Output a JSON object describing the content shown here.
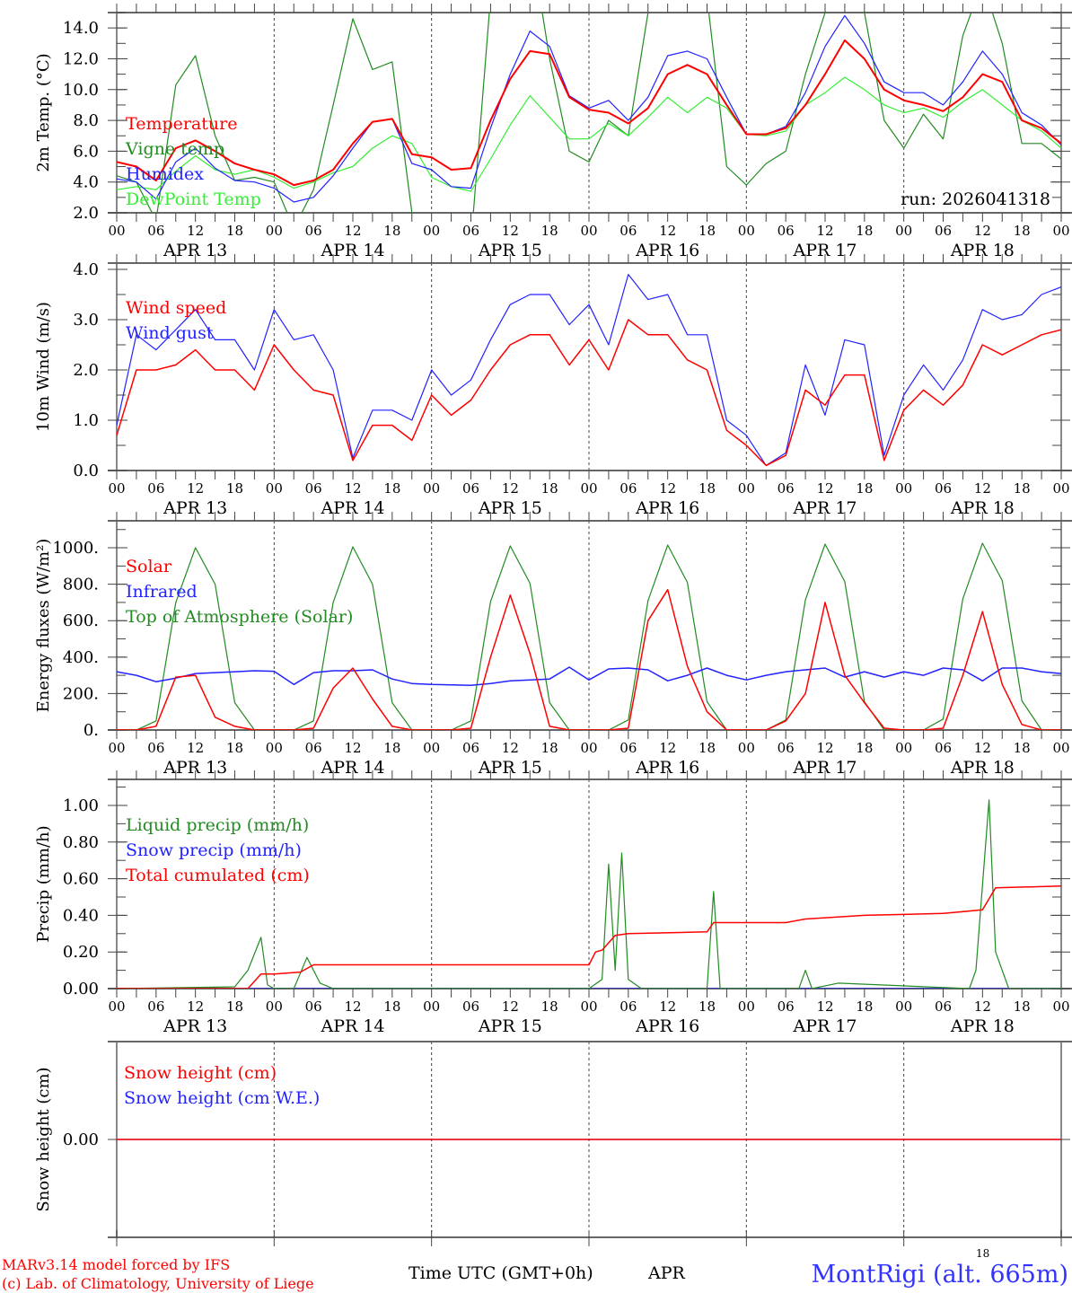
{
  "x_axis": {
    "hour_labels": [
      "00",
      "06",
      "12",
      "18"
    ],
    "days": [
      "APR 13",
      "APR 14",
      "APR 15",
      "APR 16",
      "APR 17",
      "APR 18"
    ],
    "range_hours": [
      0,
      144
    ],
    "label": "Time UTC (GMT+0h)",
    "month": "APR",
    "corner_label": "18"
  },
  "footer": {
    "line1": "MARv3.14 model forced by IFS",
    "line2": "(c) Lab. of Climatology, University of Liege",
    "station": "MontRigi (alt. 665m)",
    "credit_color": "#ff0000",
    "station_color": "#3333ff"
  },
  "chart_data": [
    {
      "type": "line",
      "title": "",
      "ylabel": "2m Temp. (°C)",
      "ylim": [
        2,
        15
      ],
      "yticks": [
        2,
        4,
        6,
        8,
        10,
        12,
        14
      ],
      "ytick_labels": [
        "2.0",
        "4.0",
        "6.0",
        "8.0",
        "10.0",
        "12.0",
        "14.0"
      ],
      "yminor": 1,
      "annotation": "run: 2026041318",
      "x": [
        0,
        3,
        6,
        9,
        12,
        15,
        18,
        21,
        24,
        27,
        30,
        33,
        36,
        39,
        42,
        45,
        48,
        51,
        54,
        57,
        60,
        63,
        66,
        69,
        72,
        75,
        78,
        81,
        84,
        87,
        90,
        93,
        96,
        99,
        102,
        105,
        108,
        111,
        114,
        117,
        120,
        123,
        126,
        129,
        132,
        135,
        138,
        141,
        144
      ],
      "series": [
        {
          "name": "Vigne temp",
          "color": "#228b22",
          "width": 1.2,
          "y": [
            4.4,
            4.0,
            1.5,
            10.3,
            12.2,
            7.0,
            4.1,
            4.3,
            4.0,
            1.0,
            3.5,
            9.0,
            14.6,
            11.3,
            11.8,
            2.0,
            1.0,
            -2,
            0,
            16,
            20,
            20,
            12,
            6.0,
            5.3,
            8.0,
            7.0,
            15,
            20,
            20,
            16,
            5.0,
            3.8,
            5.2,
            6.0,
            11,
            15,
            18,
            15,
            8,
            6.2,
            8.4,
            6.8,
            13.5,
            17,
            13,
            6.5,
            6.5,
            5.5
          ]
        },
        {
          "name": "DewPoint Temp",
          "color": "#33ee33",
          "width": 1.2,
          "y": [
            3.5,
            3.7,
            3.5,
            4.7,
            5.7,
            4.8,
            4.5,
            4.8,
            4.3,
            3.6,
            4.0,
            4.6,
            5.0,
            6.2,
            7.0,
            6.5,
            4.3,
            3.7,
            3.4,
            5.5,
            7.7,
            9.6,
            8.2,
            6.8,
            6.8,
            7.8,
            7.0,
            8.2,
            9.5,
            8.5,
            9.5,
            8.8,
            7.1,
            7.0,
            7.3,
            9.0,
            9.8,
            10.8,
            10.0,
            9.0,
            8.5,
            8.8,
            8.2,
            9.2,
            10.0,
            9.0,
            8.0,
            7.3,
            6.2
          ]
        },
        {
          "name": "Humidex",
          "color": "#2222ff",
          "width": 1.2,
          "y": [
            4.2,
            4.0,
            2.9,
            5.3,
            6.2,
            4.9,
            4.1,
            4.0,
            3.6,
            2.7,
            3.0,
            4.4,
            6.2,
            7.9,
            8.1,
            5.2,
            4.8,
            3.7,
            3.6,
            7.5,
            11.0,
            13.8,
            12.8,
            9.6,
            8.8,
            9.3,
            8.0,
            9.5,
            12.2,
            12.5,
            12.0,
            9.5,
            7.1,
            7.1,
            7.6,
            9.8,
            12.8,
            14.8,
            13.0,
            10.5,
            9.8,
            9.8,
            9.0,
            10.5,
            12.5,
            11.0,
            8.5,
            7.7,
            6.4
          ]
        },
        {
          "name": "Temperature",
          "color": "#ff0000",
          "width": 2,
          "y": [
            5.3,
            5.0,
            4.1,
            6.2,
            6.7,
            6.0,
            5.2,
            4.8,
            4.5,
            3.8,
            4.1,
            4.8,
            6.5,
            7.9,
            8.1,
            5.8,
            5.6,
            4.8,
            4.9,
            8.0,
            10.7,
            12.5,
            12.3,
            9.5,
            8.7,
            8.5,
            7.8,
            8.8,
            11.0,
            11.6,
            11.0,
            9.0,
            7.1,
            7.1,
            7.5,
            9.0,
            11.0,
            13.2,
            12.0,
            10.0,
            9.3,
            9.0,
            8.6,
            9.5,
            11.0,
            10.5,
            8.0,
            7.5,
            6.5
          ]
        }
      ],
      "legend": [
        "Temperature",
        "Vigne temp",
        "Humidex",
        "DewPoint Temp"
      ],
      "legend_colors": [
        "#ff0000",
        "#228b22",
        "#2222ff",
        "#33ee33"
      ],
      "legend_placement": "left"
    },
    {
      "type": "line",
      "ylabel": "10m Wind (m/s)",
      "ylim": [
        0,
        4.125
      ],
      "yticks": [
        0,
        1,
        2,
        3,
        4
      ],
      "ytick_labels": [
        "0.0",
        "1.0",
        "2.0",
        "3.0",
        "4.0"
      ],
      "yminor": 0.5,
      "x": [
        0,
        3,
        6,
        9,
        12,
        15,
        18,
        21,
        24,
        27,
        30,
        33,
        36,
        39,
        42,
        45,
        48,
        51,
        54,
        57,
        60,
        63,
        66,
        69,
        72,
        75,
        78,
        81,
        84,
        87,
        90,
        93,
        96,
        99,
        102,
        105,
        108,
        111,
        114,
        117,
        120,
        123,
        126,
        129,
        132,
        135,
        138,
        141,
        144
      ],
      "series": [
        {
          "name": "Wind gust",
          "color": "#2222ff",
          "width": 1.2,
          "y": [
            0.9,
            2.7,
            2.4,
            2.8,
            3.2,
            2.6,
            2.6,
            2.0,
            3.2,
            2.6,
            2.7,
            2.0,
            0.25,
            1.2,
            1.2,
            1.0,
            2.0,
            1.5,
            1.8,
            2.6,
            3.3,
            3.5,
            3.5,
            2.9,
            3.3,
            2.5,
            3.9,
            3.4,
            3.5,
            2.7,
            2.7,
            1.0,
            0.7,
            0.1,
            0.35,
            2.1,
            1.1,
            2.6,
            2.5,
            0.3,
            1.5,
            2.1,
            1.6,
            2.2,
            3.2,
            3.0,
            3.1,
            3.5,
            3.65
          ]
        },
        {
          "name": "Wind speed",
          "color": "#ff0000",
          "width": 1.5,
          "y": [
            0.7,
            2.0,
            2.0,
            2.1,
            2.4,
            2.0,
            2.0,
            1.6,
            2.5,
            2.0,
            1.6,
            1.5,
            0.2,
            0.9,
            0.9,
            0.6,
            1.5,
            1.1,
            1.4,
            2.0,
            2.5,
            2.7,
            2.7,
            2.1,
            2.6,
            2.0,
            3.0,
            2.7,
            2.7,
            2.2,
            2.0,
            0.8,
            0.5,
            0.1,
            0.3,
            1.6,
            1.3,
            1.9,
            1.9,
            0.2,
            1.2,
            1.6,
            1.3,
            1.7,
            2.5,
            2.3,
            2.5,
            2.7,
            2.8
          ]
        }
      ],
      "legend": [
        "Wind speed",
        "Wind gust"
      ],
      "legend_colors": [
        "#ff0000",
        "#2222ff"
      ],
      "legend_placement": "top-left"
    },
    {
      "type": "line",
      "ylabel": "Energy fluxes (W/m²)",
      "ylim": [
        0,
        1148
      ],
      "yticks": [
        0,
        200,
        400,
        600,
        800,
        1000
      ],
      "ytick_labels": [
        "0.",
        "200.",
        "400.",
        "600.",
        "800.",
        "1000."
      ],
      "yminor": 100,
      "x": [
        0,
        3,
        6,
        9,
        12,
        15,
        18,
        21,
        24,
        27,
        30,
        33,
        36,
        39,
        42,
        45,
        48,
        51,
        54,
        57,
        60,
        63,
        66,
        69,
        72,
        75,
        78,
        81,
        84,
        87,
        90,
        93,
        96,
        99,
        102,
        105,
        108,
        111,
        114,
        117,
        120,
        123,
        126,
        129,
        132,
        135,
        138,
        141,
        144
      ],
      "series": [
        {
          "name": "Top of Atmosphere (Solar)",
          "color": "#228b22",
          "width": 1.2,
          "y": [
            0,
            0,
            50,
            700,
            1000,
            800,
            150,
            0,
            0,
            0,
            50,
            700,
            1005,
            800,
            150,
            0,
            0,
            0,
            50,
            705,
            1010,
            805,
            150,
            0,
            0,
            0,
            55,
            710,
            1015,
            810,
            155,
            0,
            0,
            0,
            55,
            715,
            1020,
            815,
            155,
            0,
            0,
            0,
            60,
            720,
            1025,
            820,
            160,
            0,
            0
          ]
        },
        {
          "name": "Infrared",
          "color": "#2222ff",
          "width": 1.5,
          "y": [
            320,
            300,
            265,
            285,
            310,
            315,
            320,
            325,
            322,
            250,
            315,
            325,
            325,
            330,
            280,
            255,
            250,
            248,
            245,
            255,
            270,
            275,
            280,
            345,
            275,
            335,
            340,
            330,
            270,
            300,
            340,
            300,
            275,
            300,
            320,
            330,
            340,
            290,
            320,
            290,
            320,
            300,
            340,
            330,
            270,
            340,
            340,
            320,
            310
          ]
        },
        {
          "name": "Solar",
          "color": "#ff0000",
          "width": 1.5,
          "y": [
            0,
            0,
            20,
            290,
            300,
            70,
            20,
            0,
            0,
            0,
            10,
            230,
            340,
            170,
            20,
            0,
            0,
            0,
            10,
            400,
            740,
            420,
            20,
            0,
            0,
            0,
            10,
            600,
            770,
            350,
            100,
            0,
            0,
            0,
            50,
            200,
            700,
            300,
            150,
            10,
            0,
            0,
            10,
            300,
            650,
            250,
            30,
            0,
            0
          ]
        }
      ],
      "legend": [
        "Solar",
        "Infrared",
        "Top of Atmosphere (Solar)"
      ],
      "legend_colors": [
        "#ff0000",
        "#2222ff",
        "#228b22"
      ],
      "legend_placement": "top-left"
    },
    {
      "type": "line",
      "ylabel": "Precip (mm/h)",
      "ylim": [
        0,
        1.142
      ],
      "yticks": [
        0,
        0.2,
        0.4,
        0.6,
        0.8,
        1.0
      ],
      "ytick_labels": [
        "0.00",
        "0.20",
        "0.40",
        "0.60",
        "0.80",
        "1.00"
      ],
      "yminor": 0.1,
      "series": [
        {
          "name": "Snow precip (mm/h)",
          "color": "#2222ff",
          "width": 1.2,
          "x": [
            0,
            144
          ],
          "y": [
            0,
            0
          ]
        },
        {
          "name": "Liquid precip (mm/h)",
          "color": "#228b22",
          "width": 1.2,
          "x": [
            0,
            18,
            20,
            22,
            23,
            24,
            27,
            29,
            31,
            33,
            72,
            74,
            75,
            76,
            77,
            78,
            80,
            90,
            91,
            92,
            104,
            105,
            106,
            110,
            130,
            131,
            133,
            134,
            136,
            144
          ],
          "y": [
            0,
            0.01,
            0.1,
            0.28,
            0.02,
            0,
            0,
            0.17,
            0.03,
            0,
            0,
            0.05,
            0.68,
            0.1,
            0.74,
            0.05,
            0,
            0,
            0.53,
            0,
            0,
            0.1,
            0,
            0.03,
            0,
            0.1,
            1.03,
            0.2,
            0,
            0
          ]
        },
        {
          "name": "Total cumulated (cm)",
          "color": "#ff0000",
          "width": 1.5,
          "x": [
            0,
            20,
            22,
            24,
            28,
            30,
            72,
            73,
            74,
            76,
            78,
            90,
            91,
            102,
            105,
            114,
            126,
            132,
            134,
            144
          ],
          "y": [
            0,
            0,
            0.08,
            0.08,
            0.09,
            0.13,
            0.13,
            0.2,
            0.21,
            0.29,
            0.3,
            0.31,
            0.36,
            0.36,
            0.38,
            0.4,
            0.41,
            0.43,
            0.55,
            0.56
          ]
        }
      ],
      "legend": [
        "Liquid precip (mm/h)",
        "Snow precip (mm/h)",
        "Total cumulated (cm)"
      ],
      "legend_colors": [
        "#228b22",
        "#2222ff",
        "#ff0000"
      ],
      "legend_placement": "top-left"
    },
    {
      "type": "line",
      "ylabel": "Snow height (cm)",
      "ylim": [
        -1,
        1
      ],
      "yticks": [
        0
      ],
      "ytick_labels": [
        "0.00"
      ],
      "series": [
        {
          "name": "Snow height (cm W.E.)",
          "color": "#2222ff",
          "width": 1.2,
          "x": [
            0,
            144
          ],
          "y": [
            0,
            0
          ]
        },
        {
          "name": "Snow height (cm)",
          "color": "#ff0000",
          "width": 1.5,
          "x": [
            0,
            144
          ],
          "y": [
            0,
            0
          ]
        }
      ],
      "legend": [
        "Snow height (cm)",
        "Snow height (cm W.E.)"
      ],
      "legend_colors": [
        "#ff0000",
        "#2222ff"
      ],
      "legend_placement": "top-left"
    }
  ]
}
